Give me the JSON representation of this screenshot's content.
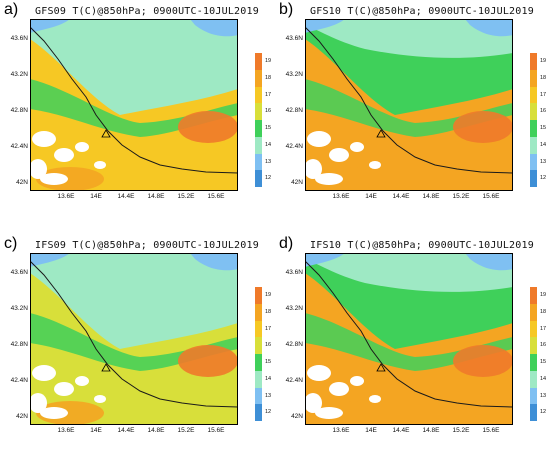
{
  "palette": {
    "t12": "#3e8fd6",
    "t13": "#7fc0f2",
    "t14": "#9ee9c4",
    "t15": "#3fd05a",
    "t16": "#d8df3a",
    "t17": "#f6c824",
    "t18": "#f4a522",
    "t19": "#ef7a2a",
    "coast": "#1a1a1a",
    "cloud": "#ffffff"
  },
  "colorbar_labels": [
    "19",
    "18",
    "17",
    "16",
    "15",
    "14",
    "13",
    "12"
  ],
  "y_ticks": [
    "43.6N",
    "43.2N",
    "42.8N",
    "42.4N",
    "42N"
  ],
  "x_ticks": [
    "13.6E",
    "14E",
    "14.4E",
    "14.8E",
    "15.2E",
    "15.6E"
  ],
  "panels": [
    {
      "tag": "a)",
      "title": "GFS09 T(C)@850hPa; 0900UTC-10JUL2019",
      "dominant": "t17",
      "north": "t14"
    },
    {
      "tag": "b)",
      "title": "GFS10 T(C)@850hPa; 0900UTC-10JUL2019",
      "dominant": "t18",
      "north": "t15"
    },
    {
      "tag": "c)",
      "title": "IFS09 T(C)@850hPa; 0900UTC-10JUL2019",
      "dominant": "t16",
      "north": "t14"
    },
    {
      "tag": "d)",
      "title": "IFS10 T(C)@850hPa; 0900UTC-10JUL2019",
      "dominant": "t18",
      "north": "t15"
    }
  ]
}
